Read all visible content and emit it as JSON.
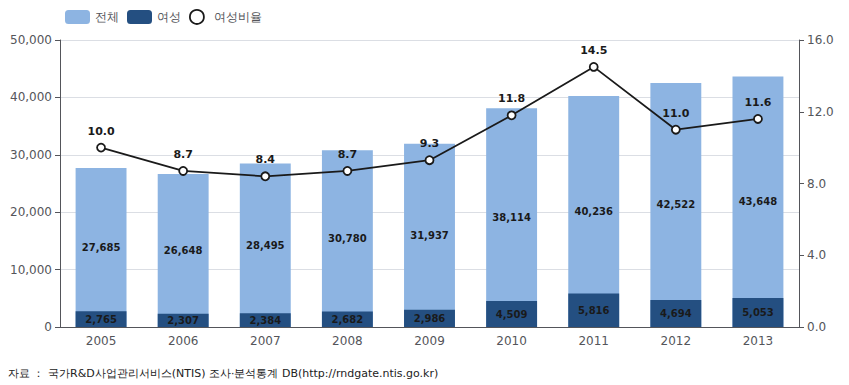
{
  "chart_data": {
    "type": "bar",
    "categories": [
      "2005",
      "2006",
      "2007",
      "2008",
      "2009",
      "2010",
      "2011",
      "2012",
      "2013"
    ],
    "series": [
      {
        "name": "전체",
        "type": "bar",
        "color": "#8DB4E2",
        "values": [
          27685,
          26648,
          28495,
          30780,
          31937,
          38114,
          40236,
          42522,
          43648
        ],
        "value_labels": [
          "27,685",
          "26,648",
          "28,495",
          "30,780",
          "31,937",
          "38,114",
          "40,236",
          "42,522",
          "43,648"
        ]
      },
      {
        "name": "여성",
        "type": "bar",
        "color": "#244F81",
        "values": [
          2765,
          2307,
          2384,
          2682,
          2986,
          4509,
          5816,
          4694,
          5053
        ],
        "value_labels": [
          "2,765",
          "2,307",
          "2,384",
          "2,682",
          "2,986",
          "4,509",
          "5,816",
          "4,694",
          "5,053"
        ]
      },
      {
        "name": "여성비율",
        "type": "line",
        "axis": "y2",
        "color": "#1a1a1a",
        "marker": "circle",
        "values": [
          10.0,
          8.7,
          8.4,
          8.7,
          9.3,
          11.8,
          14.5,
          11.0,
          11.6
        ],
        "value_labels": [
          "10.0",
          "8.7",
          "8.4",
          "8.7",
          "9.3",
          "11.8",
          "14.5",
          "11.0",
          "11.6"
        ]
      }
    ],
    "ylim": [
      0,
      50000
    ],
    "yticks": [
      0,
      {
        "value": 10000,
        "label": "10,000"
      },
      {
        "value": 20000,
        "label": "20,000"
      },
      {
        "value": 30000,
        "label": "30,000"
      },
      {
        "value": 40000,
        "label": "40,000"
      },
      {
        "value": 50000,
        "label": "50,000"
      }
    ],
    "y2lim": [
      0,
      16.0
    ],
    "y2ticks": [
      {
        "value": 0,
        "label": "0.0"
      },
      {
        "value": 4,
        "label": "4.0"
      },
      {
        "value": 8,
        "label": "8.0"
      },
      {
        "value": 12,
        "label": "12.0"
      },
      {
        "value": 16,
        "label": "16.0"
      }
    ],
    "grid": true,
    "legend": "upper left",
    "data_labels": true,
    "annotations": [
      "자료 ： 국가R&D사업관리서비스(NTIS) 조사·분석통계 DB(http://rndgate.ntis.go.kr)"
    ]
  }
}
